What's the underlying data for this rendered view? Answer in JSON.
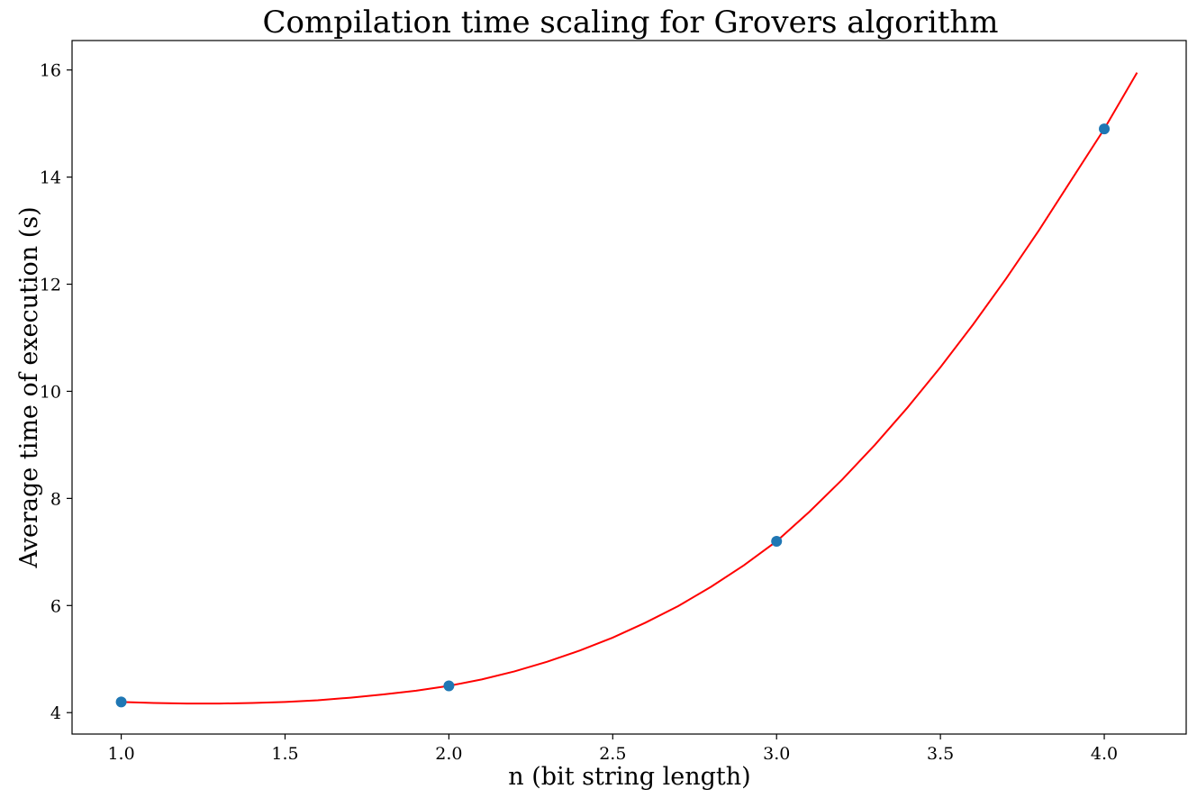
{
  "chart_data": {
    "type": "scatter",
    "title": "Compilation time scaling for Grovers algorithm",
    "xlabel": "n (bit string length)",
    "ylabel": "Average time of execution (s)",
    "xlim": [
      0.85,
      4.25
    ],
    "ylim": [
      3.6,
      16.55
    ],
    "xticks": [
      1.0,
      1.5,
      2.0,
      2.5,
      3.0,
      3.5,
      4.0
    ],
    "xtick_labels": [
      "1.0",
      "1.5",
      "2.0",
      "2.5",
      "3.0",
      "3.5",
      "4.0"
    ],
    "yticks": [
      4,
      6,
      8,
      10,
      12,
      14,
      16
    ],
    "ytick_labels": [
      "4",
      "6",
      "8",
      "10",
      "12",
      "14",
      "16"
    ],
    "grid": false,
    "series": [
      {
        "type": "scatter",
        "color": "#1f77b4",
        "x": [
          1,
          2,
          3,
          4
        ],
        "y": [
          4.2,
          4.5,
          7.2,
          14.9
        ]
      },
      {
        "type": "line",
        "color": "#ff0000",
        "x": [
          1.0,
          1.1,
          1.2,
          1.3,
          1.4,
          1.5,
          1.6,
          1.7,
          1.8,
          1.9,
          2.0,
          2.1,
          2.2,
          2.3,
          2.4,
          2.5,
          2.6,
          2.7,
          2.8,
          2.9,
          3.0,
          3.1,
          3.2,
          3.3,
          3.4,
          3.5,
          3.6,
          3.7,
          3.8,
          3.9,
          4.0,
          4.1
        ],
        "y": [
          4.2,
          4.18,
          4.17,
          4.17,
          4.18,
          4.2,
          4.23,
          4.28,
          4.34,
          4.41,
          4.5,
          4.62,
          4.77,
          4.95,
          5.16,
          5.4,
          5.68,
          5.99,
          6.35,
          6.75,
          7.2,
          7.75,
          8.35,
          9.0,
          9.7,
          10.45,
          11.25,
          12.1,
          13.0,
          13.95,
          14.9,
          15.95
        ]
      }
    ]
  }
}
